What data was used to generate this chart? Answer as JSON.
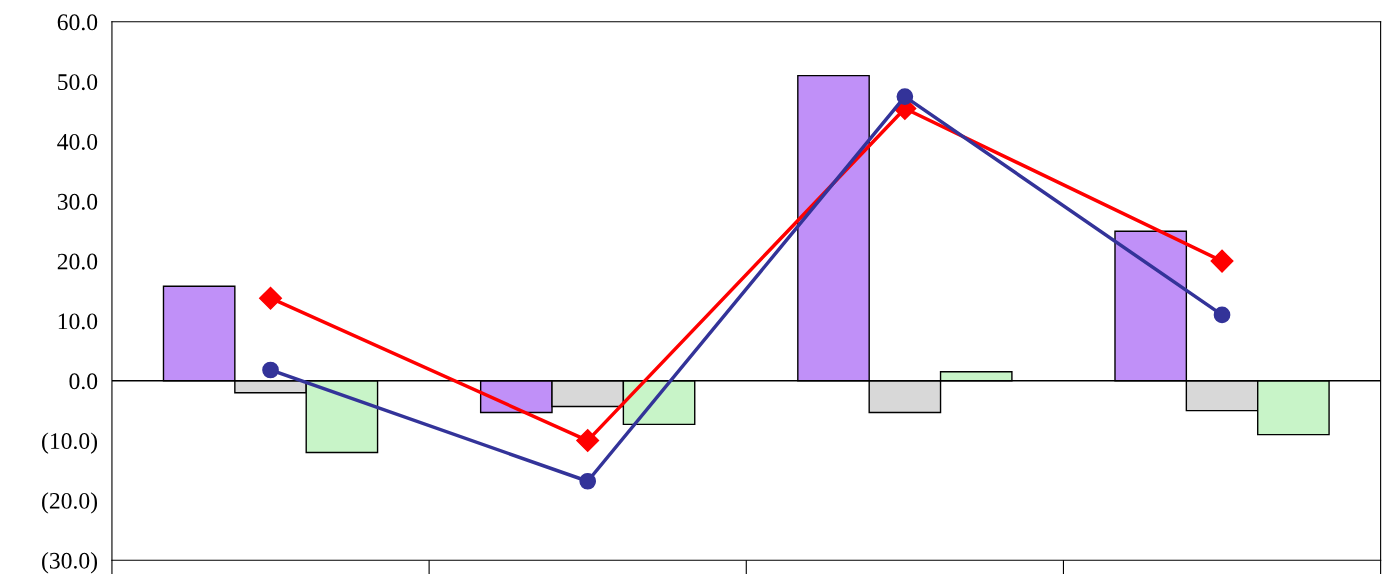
{
  "chart_data": {
    "type": "bar",
    "categories": [
      null,
      null,
      null,
      null
    ],
    "series": [
      {
        "color": "#c090f8",
        "values": [
          15.8,
          -5.3,
          51.0,
          25.0
        ]
      },
      {
        "color": "#d8d8d8",
        "values": [
          -2.0,
          -4.3,
          -5.3,
          -5.0
        ]
      },
      {
        "color": "#c8f4c8",
        "values": [
          -12.0,
          -7.3,
          1.5,
          -9.0
        ]
      },
      {
        "type": "line",
        "color": "#ff0000",
        "marker": "diamond",
        "values": [
          13.8,
          -10.0,
          45.5,
          20.0
        ]
      },
      {
        "type": "line",
        "color": "#333399",
        "marker": "circle",
        "values": [
          1.8,
          -16.8,
          47.5,
          11.0
        ]
      }
    ],
    "ylim": [
      -30,
      60
    ],
    "yticks": [
      {
        "value": -30,
        "label": "(30.0)"
      },
      {
        "value": -20,
        "label": "(20.0)"
      },
      {
        "value": -10,
        "label": "(10.0)"
      },
      {
        "value": 0,
        "label": "0.0"
      },
      {
        "value": 10,
        "label": "10.0"
      },
      {
        "value": 20,
        "label": "20.0"
      },
      {
        "value": 30,
        "label": "30.0"
      },
      {
        "value": 40,
        "label": "40.0"
      },
      {
        "value": 50,
        "label": "50.0"
      },
      {
        "value": 60,
        "label": "60.0"
      }
    ],
    "ref_lines": [
      {
        "axis": "y",
        "value": 0,
        "color": "#000000"
      }
    ],
    "grid": false,
    "legend": false
  }
}
